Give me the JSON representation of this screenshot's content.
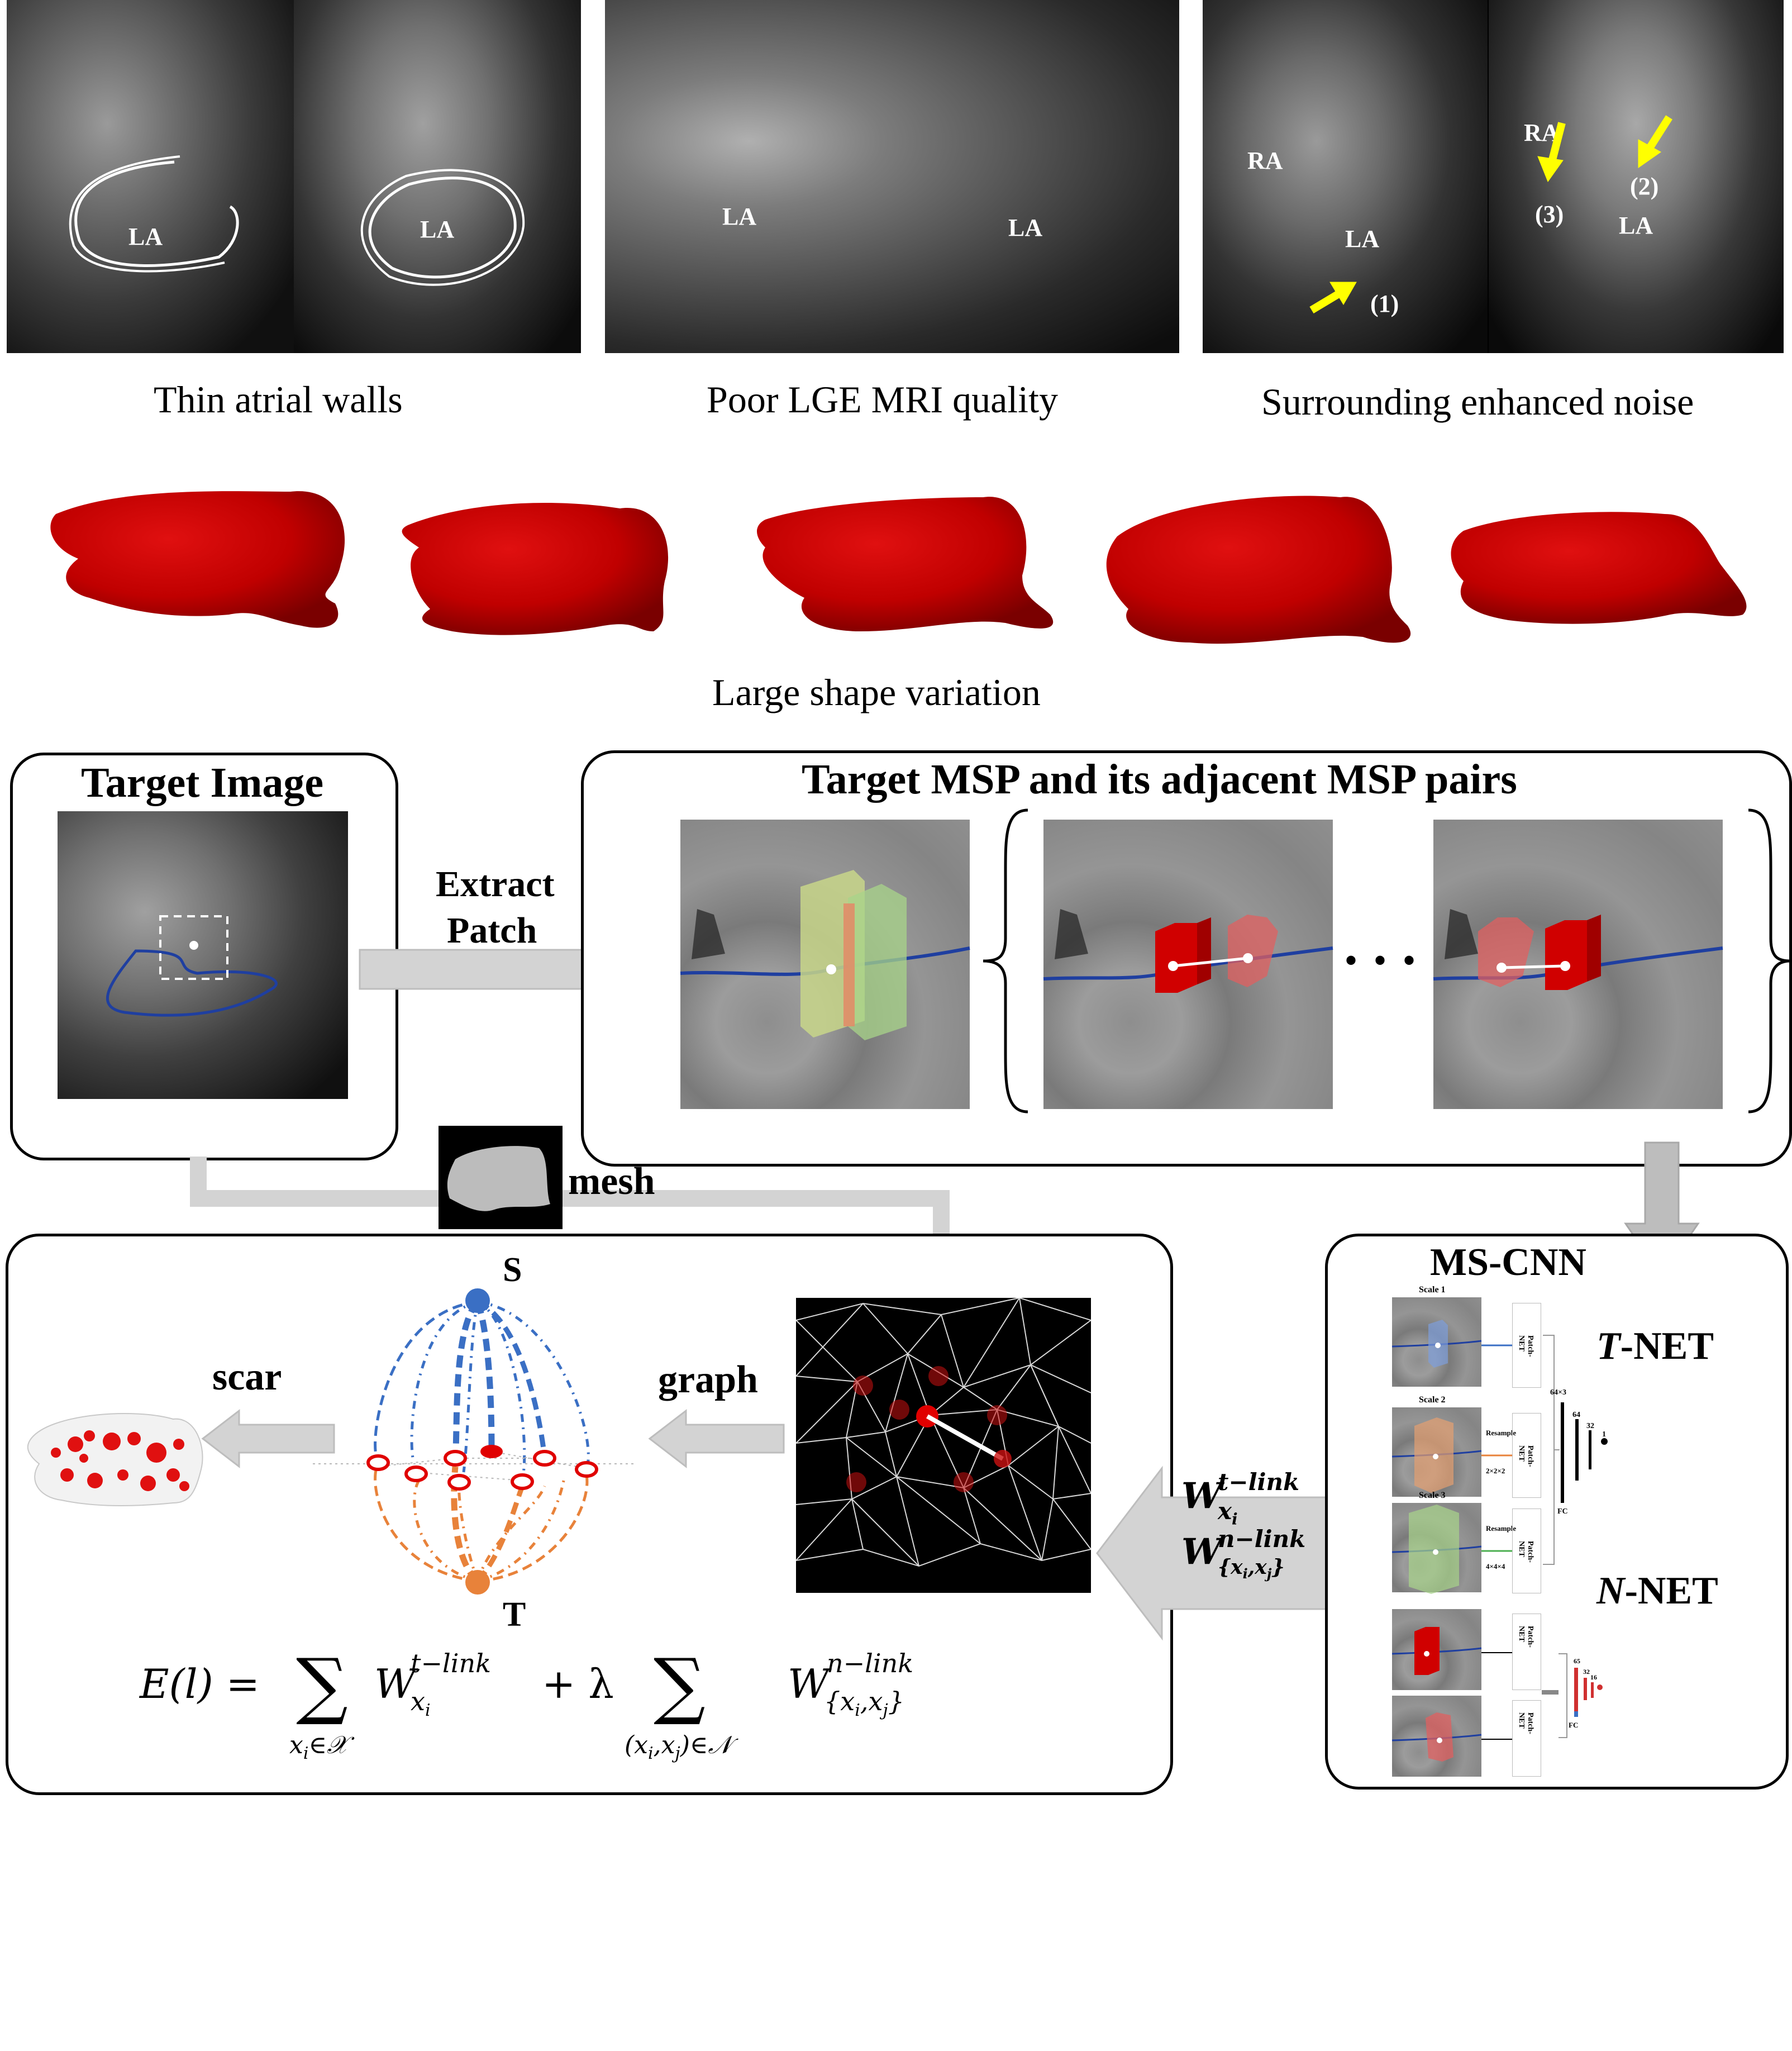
{
  "challenges": {
    "mri_labels": {
      "la": "LA",
      "ra": "RA",
      "marker_1": "(1)",
      "marker_2": "(2)",
      "marker_3": "(3)"
    },
    "captions": {
      "thin_walls": "Thin atrial walls",
      "poor_quality": "Poor LGE MRI quality",
      "noise": "Surrounding enhanced noise",
      "shape_variation": "Large shape variation"
    }
  },
  "pipeline": {
    "target_image_title": "Target Image",
    "extract_patch_label_1": "Extract",
    "extract_patch_label_2": "Patch",
    "msp_title": "Target MSP and its adjacent MSP pairs",
    "ellipsis": "• • •",
    "mesh_label": "mesh",
    "mscnn_title": "MS-CNN",
    "tnet_label_italic": "T",
    "tnet_label_rest": "-NET",
    "nnet_label_italic": "N",
    "nnet_label_rest": "-NET",
    "scale_labels": [
      "Scale 1",
      "Scale 2",
      "Scale 3"
    ],
    "patch_net_label": "Patch-NET",
    "resample_label": "Resample",
    "resample_sizes": [
      "2×2×2",
      "4×4×4"
    ],
    "fc_label": "FC",
    "layer_sizes": [
      "64×3",
      "64",
      "32",
      "1"
    ],
    "n_layer_sizes": [
      "65",
      "32",
      "16",
      "1"
    ],
    "graph_label": "graph",
    "scar_label": "scar",
    "source_label": "S",
    "sink_label": "T",
    "weight_t": "W",
    "weight_t_sup": "t−link",
    "weight_t_sub": "x",
    "weight_t_subsub": "i",
    "weight_n": "W",
    "weight_n_sup": "n−link",
    "weight_n_sub": "{x",
    "weight_n_sub_i": "i",
    "weight_n_sub_mid": ",x",
    "weight_n_sub_j": "j",
    "weight_n_sub_end": "}",
    "equation": {
      "lhs": "E(l) =",
      "sum1_sub": "x",
      "sum1_sub_i": "i",
      "sum1_sub_rest": "∈𝒳",
      "term1": "W",
      "term1_sup": "t−link",
      "term1_sub": "x",
      "term1_sub_i": "i",
      "plus": "+ λ",
      "sum2_sub": "(x",
      "sum2_sub_i": "i",
      "sum2_sub_mid": ",x",
      "sum2_sub_j": "j",
      "sum2_sub_rest": ")∈𝒩",
      "term2": "W",
      "term2_sup": "n−link",
      "term2_sub": "{x",
      "term2_sub_i": "i",
      "term2_sub_mid": ",x",
      "term2_sub_j": "j",
      "term2_sub_end": "}",
      "sigma": "∑"
    }
  },
  "colors": {
    "la_red": "#c80000",
    "arrow_gray": "#cfcfcf",
    "source_blue": "#3a6fc4",
    "sink_orange": "#e8823a",
    "contour_blue": "#1f3fa0",
    "yellow_arrow": "#ffff00"
  }
}
